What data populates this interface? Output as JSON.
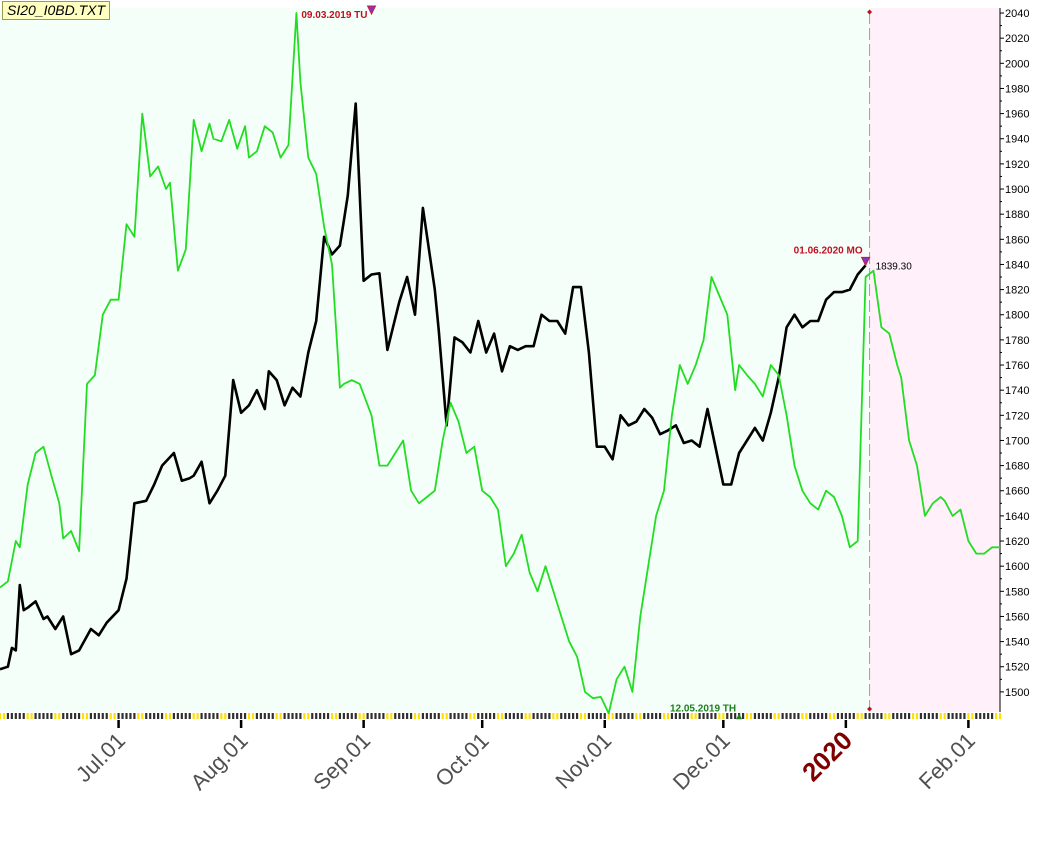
{
  "chart_data": {
    "type": "line",
    "title": "SI20_I0BD.TXT",
    "y_ticks": [
      1500,
      1520,
      1540,
      1560,
      1580,
      1600,
      1620,
      1640,
      1660,
      1680,
      1700,
      1720,
      1740,
      1760,
      1780,
      1800,
      1820,
      1840,
      1860,
      1880,
      1900,
      1920,
      1940,
      1960,
      1980,
      2000,
      2020,
      2040
    ],
    "ylim": [
      1484,
      2044
    ],
    "x_tick_labels": [
      {
        "label": "Jul.01",
        "date": "2019-07-01",
        "highlight": false
      },
      {
        "label": "Aug.01",
        "date": "2019-08-01",
        "highlight": false
      },
      {
        "label": "Sep.01",
        "date": "2019-09-01",
        "highlight": false
      },
      {
        "label": "Oct.01",
        "date": "2019-10-01",
        "highlight": false
      },
      {
        "label": "Nov.01",
        "date": "2019-11-01",
        "highlight": false
      },
      {
        "label": "Dec.01",
        "date": "2019-12-01",
        "highlight": false
      },
      {
        "label": "2020",
        "date": "2020-01-01",
        "highlight": true
      },
      {
        "label": "Feb.01",
        "date": "2020-02-01",
        "highlight": false
      }
    ],
    "xlim": [
      "2019-06-01",
      "2020-02-09"
    ],
    "forecast_start": "2020-01-07",
    "grid": false,
    "colors": {
      "plot_bg": "#f5fffa",
      "forecast_bg": "#fff0fa",
      "black_series": "#000000",
      "green_series": "#22dd22",
      "marker": "#c01020",
      "arrow": "#9030c0",
      "axis_label": "#505050",
      "highlight_label": "#800000"
    },
    "series": [
      {
        "color": "black",
        "x": [
          "2019-06-01",
          "2019-06-03",
          "2019-06-04",
          "2019-06-05",
          "2019-06-06",
          "2019-06-07",
          "2019-06-08",
          "2019-06-10",
          "2019-06-12",
          "2019-06-13",
          "2019-06-15",
          "2019-06-17",
          "2019-06-19",
          "2019-06-21",
          "2019-06-24",
          "2019-06-26",
          "2019-06-28",
          "2019-07-01",
          "2019-07-03",
          "2019-07-05",
          "2019-07-08",
          "2019-07-10",
          "2019-07-12",
          "2019-07-15",
          "2019-07-17",
          "2019-07-19",
          "2019-07-20",
          "2019-07-22",
          "2019-07-24",
          "2019-07-26",
          "2019-07-28",
          "2019-07-30",
          "2019-08-01",
          "2019-08-03",
          "2019-08-05",
          "2019-08-07",
          "2019-08-08",
          "2019-08-10",
          "2019-08-12",
          "2019-08-14",
          "2019-08-16",
          "2019-08-18",
          "2019-08-20",
          "2019-08-22",
          "2019-08-24",
          "2019-08-26",
          "2019-08-27",
          "2019-08-28",
          "2019-08-30",
          "2019-09-01",
          "2019-09-03",
          "2019-09-05",
          "2019-09-07",
          "2019-09-10",
          "2019-09-12",
          "2019-09-14",
          "2019-09-16",
          "2019-09-19",
          "2019-09-20",
          "2019-09-22",
          "2019-09-24",
          "2019-09-26",
          "2019-09-28",
          "2019-09-30",
          "2019-10-02",
          "2019-10-04",
          "2019-10-06",
          "2019-10-08",
          "2019-10-10",
          "2019-10-12",
          "2019-10-14",
          "2019-10-16",
          "2019-10-18",
          "2019-10-20",
          "2019-10-22",
          "2019-10-24",
          "2019-10-26",
          "2019-10-28",
          "2019-10-30",
          "2019-11-01",
          "2019-11-03",
          "2019-11-05",
          "2019-11-07",
          "2019-11-09",
          "2019-11-11",
          "2019-11-13",
          "2019-11-15",
          "2019-11-17",
          "2019-11-19",
          "2019-11-21",
          "2019-11-23",
          "2019-11-25",
          "2019-11-27",
          "2019-11-29",
          "2019-12-01",
          "2019-12-03",
          "2019-12-05",
          "2019-12-07",
          "2019-12-09",
          "2019-12-11",
          "2019-12-13",
          "2019-12-15",
          "2019-12-17",
          "2019-12-19",
          "2019-12-21",
          "2019-12-23",
          "2019-12-25",
          "2019-12-27",
          "2019-12-29",
          "2019-12-31",
          "2020-01-02",
          "2020-01-04",
          "2020-01-06"
        ],
        "values": [
          1518,
          1520,
          1535,
          1533,
          1585,
          1565,
          1567,
          1572,
          1558,
          1560,
          1550,
          1560,
          1530,
          1533,
          1550,
          1545,
          1555,
          1565,
          1590,
          1650,
          1652,
          1665,
          1680,
          1690,
          1668,
          1670,
          1672,
          1683,
          1650,
          1660,
          1672,
          1748,
          1722,
          1728,
          1740,
          1725,
          1755,
          1748,
          1728,
          1742,
          1735,
          1770,
          1795,
          1862,
          1848,
          1855,
          1875,
          1895,
          1968,
          1827,
          1832,
          1833,
          1772,
          1810,
          1830,
          1800,
          1885,
          1820,
          1788,
          1712,
          1782,
          1778,
          1770,
          1795,
          1770,
          1785,
          1755,
          1775,
          1772,
          1775,
          1775,
          1800,
          1795,
          1795,
          1785,
          1822,
          1822,
          1770,
          1695,
          1695,
          1685,
          1720,
          1712,
          1715,
          1725,
          1718,
          1705,
          1708,
          1712,
          1698,
          1700,
          1695,
          1725,
          1695,
          1665,
          1665,
          1690,
          1700,
          1710,
          1700,
          1722,
          1750,
          1790,
          1800,
          1790,
          1795,
          1795,
          1812,
          1818,
          1818,
          1820,
          1832,
          1839.3
        ]
      },
      {
        "color": "green",
        "x": [
          "2019-06-01",
          "2019-06-03",
          "2019-06-05",
          "2019-06-06",
          "2019-06-08",
          "2019-06-10",
          "2019-06-12",
          "2019-06-14",
          "2019-06-16",
          "2019-06-17",
          "2019-06-19",
          "2019-06-21",
          "2019-06-23",
          "2019-06-25",
          "2019-06-27",
          "2019-06-29",
          "2019-07-01",
          "2019-07-03",
          "2019-07-05",
          "2019-07-07",
          "2019-07-09",
          "2019-07-11",
          "2019-07-13",
          "2019-07-14",
          "2019-07-16",
          "2019-07-18",
          "2019-07-20",
          "2019-07-22",
          "2019-07-24",
          "2019-07-25",
          "2019-07-27",
          "2019-07-29",
          "2019-07-31",
          "2019-08-02",
          "2019-08-03",
          "2019-08-05",
          "2019-08-07",
          "2019-08-09",
          "2019-08-11",
          "2019-08-13",
          "2019-08-15",
          "2019-08-16",
          "2019-08-18",
          "2019-08-20",
          "2019-08-22",
          "2019-08-24",
          "2019-08-26",
          "2019-08-27",
          "2019-08-29",
          "2019-08-31",
          "2019-09-03",
          "2019-09-05",
          "2019-09-07",
          "2019-09-09",
          "2019-09-11",
          "2019-09-13",
          "2019-09-15",
          "2019-09-17",
          "2019-09-19",
          "2019-09-21",
          "2019-09-23",
          "2019-09-25",
          "2019-09-27",
          "2019-09-29",
          "2019-10-01",
          "2019-10-03",
          "2019-10-05",
          "2019-10-07",
          "2019-10-09",
          "2019-10-11",
          "2019-10-13",
          "2019-10-15",
          "2019-10-17",
          "2019-10-19",
          "2019-10-21",
          "2019-10-23",
          "2019-10-25",
          "2019-10-27",
          "2019-10-29",
          "2019-10-31",
          "2019-11-02",
          "2019-11-04",
          "2019-11-06",
          "2019-11-08",
          "2019-11-10",
          "2019-11-12",
          "2019-11-14",
          "2019-11-16",
          "2019-11-18",
          "2019-11-20",
          "2019-11-22",
          "2019-11-24",
          "2019-11-26",
          "2019-11-28",
          "2019-11-30",
          "2019-12-02",
          "2019-12-04",
          "2019-12-05",
          "2019-12-07",
          "2019-12-09",
          "2019-12-11",
          "2019-12-13",
          "2019-12-15",
          "2019-12-17",
          "2019-12-19",
          "2019-12-21",
          "2019-12-23",
          "2019-12-25",
          "2019-12-27",
          "2019-12-29",
          "2019-12-31",
          "2020-01-02",
          "2020-01-04",
          "2020-01-06",
          "2020-01-08",
          "2020-01-10",
          "2020-01-12",
          "2020-01-14",
          "2020-01-15",
          "2020-01-17",
          "2020-01-19",
          "2020-01-21",
          "2020-01-23",
          "2020-01-25",
          "2020-01-26",
          "2020-01-28",
          "2020-01-30",
          "2020-02-01",
          "2020-02-03",
          "2020-02-05",
          "2020-02-07",
          "2020-02-09"
        ],
        "values": [
          1583,
          1588,
          1620,
          1615,
          1665,
          1690,
          1695,
          1672,
          1650,
          1622,
          1628,
          1612,
          1745,
          1752,
          1800,
          1812,
          1812,
          1872,
          1862,
          1960,
          1910,
          1918,
          1900,
          1905,
          1835,
          1852,
          1955,
          1930,
          1952,
          1940,
          1938,
          1955,
          1932,
          1950,
          1925,
          1930,
          1950,
          1945,
          1925,
          1935,
          2040,
          1985,
          1925,
          1912,
          1870,
          1840,
          1742,
          1745,
          1748,
          1745,
          1720,
          1680,
          1680,
          1690,
          1700,
          1660,
          1650,
          1655,
          1660,
          1700,
          1730,
          1715,
          1690,
          1695,
          1660,
          1655,
          1645,
          1600,
          1610,
          1625,
          1595,
          1580,
          1600,
          1580,
          1560,
          1540,
          1528,
          1500,
          1495,
          1496,
          1483,
          1510,
          1520,
          1500,
          1560,
          1600,
          1640,
          1660,
          1720,
          1760,
          1745,
          1760,
          1780,
          1830,
          1815,
          1800,
          1740,
          1760,
          1752,
          1745,
          1735,
          1760,
          1752,
          1720,
          1680,
          1660,
          1650,
          1645,
          1660,
          1655,
          1640,
          1615,
          1620,
          1830,
          1835,
          1790,
          1785,
          1760,
          1750,
          1700,
          1680,
          1640,
          1650,
          1655,
          1652,
          1640,
          1645,
          1620,
          1610,
          1610,
          1615,
          1615
        ]
      }
    ],
    "annotations": [
      {
        "text": "09.03.2019 TU",
        "x": "2019-09-03",
        "y": 2040,
        "color": "red",
        "position": "above"
      },
      {
        "text": "01.06.2020 MO",
        "x": "2020-01-06",
        "y": 1839.3,
        "color": "red",
        "position": "left"
      },
      {
        "text": "1839.30",
        "x": "2020-01-06",
        "y": 1839.3,
        "color": "black",
        "position": "right"
      },
      {
        "text": "12.05.2019 TH",
        "x": "2019-12-05",
        "y": 1483,
        "color": "green",
        "position": "below-left"
      }
    ]
  }
}
